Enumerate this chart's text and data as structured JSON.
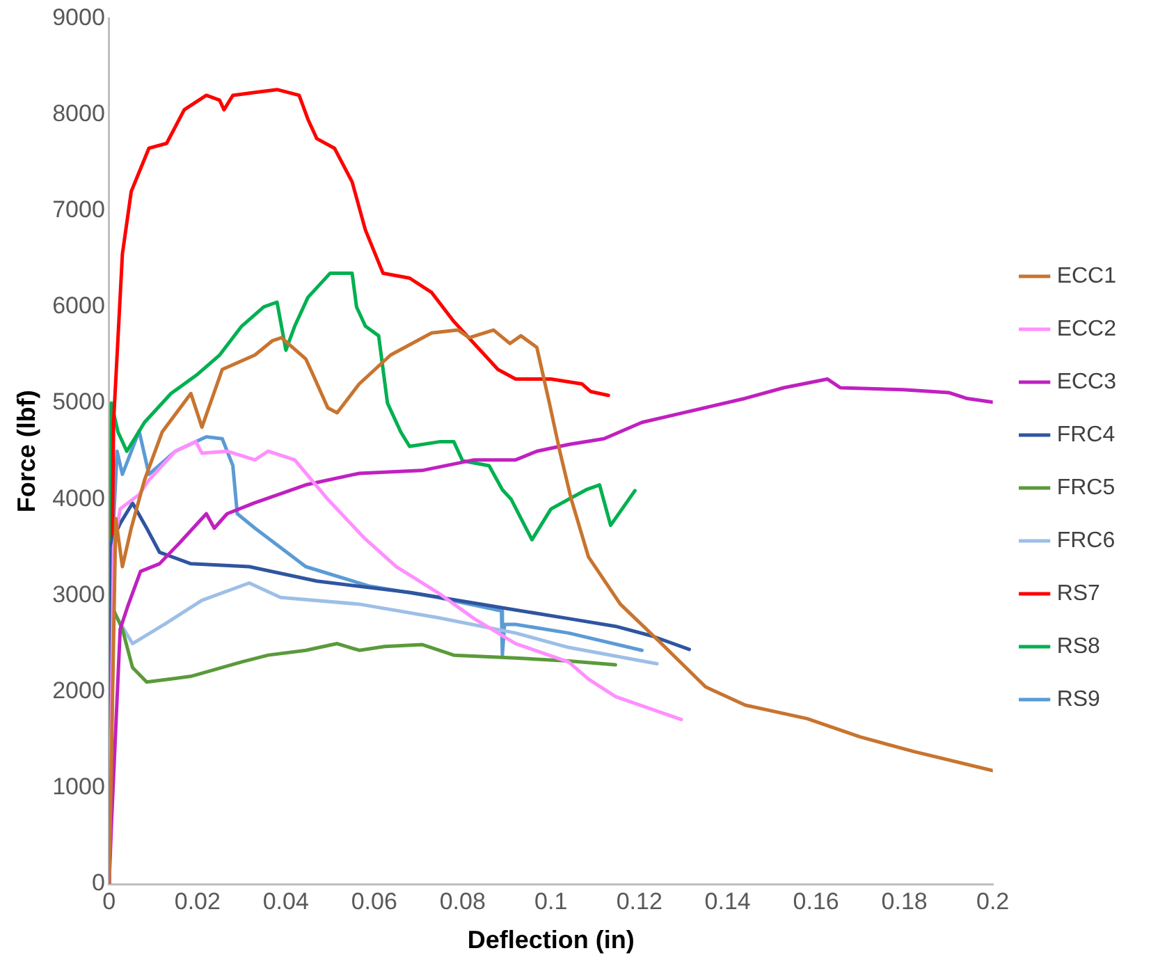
{
  "chart_data": {
    "type": "line",
    "xlabel": "Deflection (in)",
    "ylabel": "Force (lbf)",
    "xlim": [
      0,
      0.2
    ],
    "xticks": [
      0,
      0.02,
      0.04,
      0.06,
      0.08,
      0.1,
      0.12,
      0.14,
      0.16,
      0.18,
      0.2
    ],
    "ylim": [
      0,
      9000
    ],
    "yticks": [
      0,
      1000,
      2000,
      3000,
      4000,
      5000,
      6000,
      7000,
      8000,
      9000
    ],
    "grid": false,
    "legend": "right",
    "marker": "none",
    "line_style": "solid",
    "series": [
      {
        "name": "ECC1",
        "color": "#c8742f",
        "x": [
          0,
          0.0015,
          0.003,
          0.005,
          0.008,
          0.012,
          0.0185,
          0.021,
          0.0256,
          0.033,
          0.037,
          0.039,
          0.0445,
          0.046,
          0.0495,
          0.0516,
          0.0566,
          0.0637,
          0.073,
          0.079,
          0.0815,
          0.087,
          0.0907,
          0.0932,
          0.0968,
          0.0996,
          0.102,
          0.1046,
          0.1085,
          0.1157,
          0.125,
          0.135,
          0.144,
          0.158,
          0.17,
          0.182,
          0.2
        ],
        "values": [
          0,
          3800,
          3300,
          3700,
          4200,
          4700,
          5100,
          4750,
          5350,
          5500,
          5650,
          5680,
          5460,
          5310,
          4950,
          4900,
          5200,
          5500,
          5730,
          5760,
          5680,
          5760,
          5620,
          5700,
          5580,
          5010,
          4500,
          4000,
          3400,
          2910,
          2500,
          2050,
          1860,
          1720,
          1530,
          1380,
          1180
        ]
      },
      {
        "name": "ECC2",
        "color": "#ff8fff",
        "x": [
          0,
          0.001,
          0.0025,
          0.0068,
          0.009,
          0.015,
          0.0196,
          0.021,
          0.0267,
          0.033,
          0.036,
          0.042,
          0.0495,
          0.0577,
          0.065,
          0.0744,
          0.0826,
          0.092,
          0.104,
          0.1085,
          0.1146,
          0.1295
        ],
        "values": [
          0,
          3500,
          3900,
          4050,
          4200,
          4500,
          4600,
          4480,
          4500,
          4410,
          4500,
          4410,
          4000,
          3600,
          3300,
          3030,
          2760,
          2500,
          2310,
          2130,
          1950,
          1710
        ]
      },
      {
        "name": "ECC3",
        "color": "#c020c0",
        "x": [
          0,
          0.0005,
          0.0025,
          0.0043,
          0.0071,
          0.0114,
          0.016,
          0.022,
          0.0238,
          0.0267,
          0.0327,
          0.0445,
          0.0566,
          0.0708,
          0.0826,
          0.092,
          0.0968,
          0.104,
          0.112,
          0.1206,
          0.13,
          0.144,
          0.1527,
          0.1626,
          0.1655,
          0.1797,
          0.19,
          0.194,
          0.2
        ],
        "values": [
          0,
          600,
          2650,
          2900,
          3250,
          3330,
          3550,
          3850,
          3700,
          3850,
          3960,
          4150,
          4270,
          4300,
          4410,
          4410,
          4500,
          4570,
          4630,
          4800,
          4900,
          5050,
          5160,
          5250,
          5160,
          5140,
          5110,
          5050,
          5010
        ]
      },
      {
        "name": "FRC4",
        "color": "#2f55a0",
        "x": [
          0,
          0.0005,
          0.0025,
          0.0053,
          0.0085,
          0.0114,
          0.0185,
          0.0317,
          0.047,
          0.0683,
          0.092,
          0.104,
          0.1146,
          0.1228,
          0.1313
        ],
        "values": [
          0,
          3550,
          3750,
          3960,
          3700,
          3450,
          3330,
          3300,
          3150,
          3030,
          2850,
          2760,
          2680,
          2580,
          2440
        ]
      },
      {
        "name": "FRC5",
        "color": "#5a9a3a",
        "x": [
          0,
          0.001,
          0.003,
          0.0053,
          0.0085,
          0.0185,
          0.03,
          0.036,
          0.0445,
          0.0516,
          0.0566,
          0.0623,
          0.0708,
          0.078,
          0.092,
          0.104,
          0.1146
        ],
        "values": [
          0,
          2850,
          2650,
          2250,
          2100,
          2160,
          2310,
          2380,
          2430,
          2500,
          2430,
          2470,
          2490,
          2380,
          2350,
          2320,
          2280
        ]
      },
      {
        "name": "FRC6",
        "color": "#9dbfe6",
        "x": [
          0,
          0.0007,
          0.0053,
          0.0125,
          0.021,
          0.0317,
          0.0388,
          0.0566,
          0.0744,
          0.092,
          0.104,
          0.124
        ],
        "values": [
          0,
          2850,
          2500,
          2700,
          2950,
          3130,
          2980,
          2910,
          2770,
          2610,
          2460,
          2290
        ]
      },
      {
        "name": "RS7",
        "color": "#ff0000",
        "x": [
          0,
          0.001,
          0.003,
          0.005,
          0.009,
          0.013,
          0.017,
          0.022,
          0.025,
          0.026,
          0.028,
          0.033,
          0.038,
          0.043,
          0.045,
          0.047,
          0.051,
          0.055,
          0.058,
          0.062,
          0.068,
          0.073,
          0.078,
          0.083,
          0.088,
          0.092,
          0.1,
          0.107,
          0.109,
          0.113
        ],
        "values": [
          0,
          4800,
          6550,
          7200,
          7650,
          7700,
          8050,
          8200,
          8150,
          8050,
          8200,
          8230,
          8260,
          8200,
          7950,
          7750,
          7650,
          7300,
          6800,
          6350,
          6300,
          6150,
          5850,
          5600,
          5350,
          5250,
          5250,
          5200,
          5120,
          5080
        ]
      },
      {
        "name": "RS8",
        "color": "#00b050",
        "x": [
          0,
          0.0005,
          0.002,
          0.004,
          0.008,
          0.014,
          0.02,
          0.025,
          0.03,
          0.035,
          0.038,
          0.039,
          0.04,
          0.042,
          0.045,
          0.05,
          0.055,
          0.056,
          0.058,
          0.061,
          0.063,
          0.066,
          0.068,
          0.075,
          0.078,
          0.08,
          0.086,
          0.089,
          0.091,
          0.0957,
          0.1,
          0.104,
          0.108,
          0.111,
          0.1135,
          0.119
        ],
        "values": [
          0,
          5000,
          4700,
          4500,
          4800,
          5100,
          5300,
          5500,
          5800,
          6000,
          6050,
          5800,
          5550,
          5800,
          6100,
          6350,
          6350,
          6000,
          5800,
          5700,
          5000,
          4700,
          4550,
          4600,
          4600,
          4400,
          4350,
          4100,
          4000,
          3580,
          3900,
          4000,
          4100,
          4150,
          3730,
          4090
        ]
      },
      {
        "name": "RS9",
        "color": "#5b9bd5",
        "x": [
          0,
          0.0007,
          0.0018,
          0.003,
          0.0068,
          0.009,
          0.015,
          0.022,
          0.0256,
          0.028,
          0.029,
          0.033,
          0.0445,
          0.0587,
          0.0744,
          0.0888,
          0.089,
          0.0895,
          0.092,
          0.104,
          0.1206
        ],
        "values": [
          0,
          3500,
          4500,
          4260,
          4710,
          4260,
          4500,
          4650,
          4630,
          4350,
          3850,
          3700,
          3300,
          3100,
          2980,
          2840,
          2380,
          2700,
          2700,
          2610,
          2430
        ]
      }
    ]
  }
}
